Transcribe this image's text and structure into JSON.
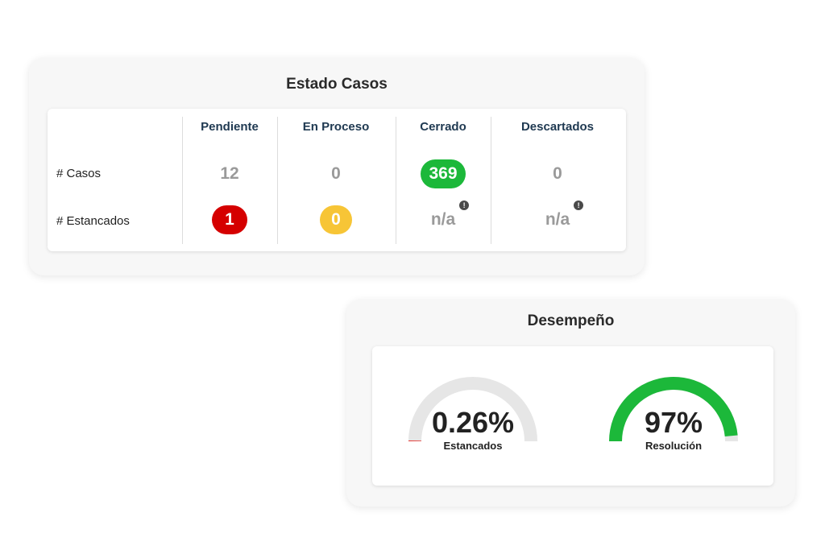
{
  "estado": {
    "title": "Estado Casos",
    "columns": [
      "Pendiente",
      "En Proceso",
      "Cerrado",
      "Descartados"
    ],
    "rows": {
      "casos_label": "# Casos",
      "estancados_label": "# Estancados"
    },
    "casos": {
      "pendiente": "12",
      "en_proceso": "0",
      "cerrado": "369",
      "descartados": "0"
    },
    "estancados": {
      "pendiente": "1",
      "en_proceso": "0",
      "cerrado": "n/a",
      "descartados": "n/a"
    },
    "info_glyph": "!",
    "colors": {
      "green": "#1cb83a",
      "red": "#d50000",
      "yellow": "#f7c536",
      "header_text": "#203a52"
    }
  },
  "desempeno": {
    "title": "Desempeño",
    "gauges": [
      {
        "value_text": "0.26%",
        "label": "Estancados",
        "fraction": 0.0026,
        "color": "#e53935"
      },
      {
        "value_text": "97%",
        "label": "Resolución",
        "fraction": 0.97,
        "color": "#1cb83a"
      }
    ],
    "track_color": "#e6e6e6"
  }
}
